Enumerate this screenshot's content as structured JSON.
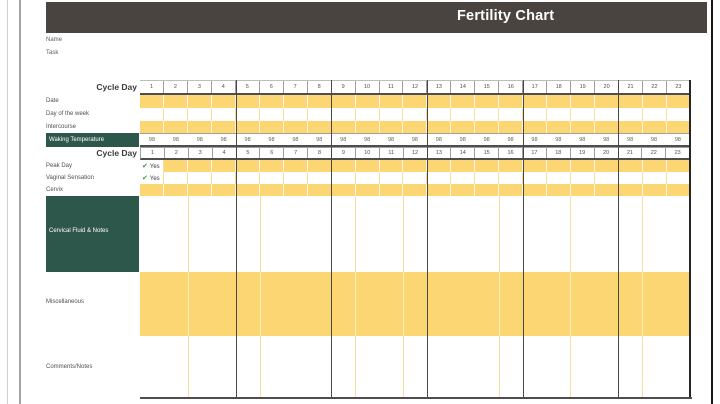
{
  "page": {
    "title": "Fertility Chart"
  },
  "meta": {
    "name_label": "Name",
    "task_label": "Task"
  },
  "table": {
    "cycle_day_label": "Cycle Day",
    "days": [
      1,
      2,
      3,
      4,
      5,
      6,
      7,
      8,
      9,
      10,
      11,
      12,
      13,
      14,
      15,
      16,
      17,
      18,
      19,
      20,
      21,
      22,
      23
    ],
    "rows": {
      "date": {
        "label": "Date"
      },
      "day_of_week": {
        "label": "Day of the week"
      },
      "intercourse": {
        "label": "Intercourse"
      },
      "waking_temperature": {
        "label": "Waking Temperature",
        "values": [
          "98",
          "98",
          "98",
          "98",
          "98",
          "98",
          "98",
          "98",
          "98",
          "98",
          "98",
          "98",
          "98",
          "98",
          "98",
          "98",
          "98",
          "98",
          "98",
          "98",
          "98",
          "98",
          "98"
        ]
      },
      "peak_day": {
        "label": "Peak Day",
        "value": "Yes",
        "icon": "check"
      },
      "vaginal_sensation": {
        "label": "Vaginal Sensation",
        "value": "Yes",
        "icon": "check"
      },
      "cervix": {
        "label": "Cervix"
      },
      "cervical_fluid_notes": {
        "label": "Cervical Fluid & Notes"
      },
      "miscellaneous": {
        "label": "Miscellaneous"
      },
      "comments": {
        "label": "Comments/Notes"
      }
    }
  },
  "colors": {
    "header_bg": "#4a4440",
    "accent_yellow": "#fcd672",
    "accent_green": "#2e574b",
    "check_green": "#3f9b35"
  }
}
